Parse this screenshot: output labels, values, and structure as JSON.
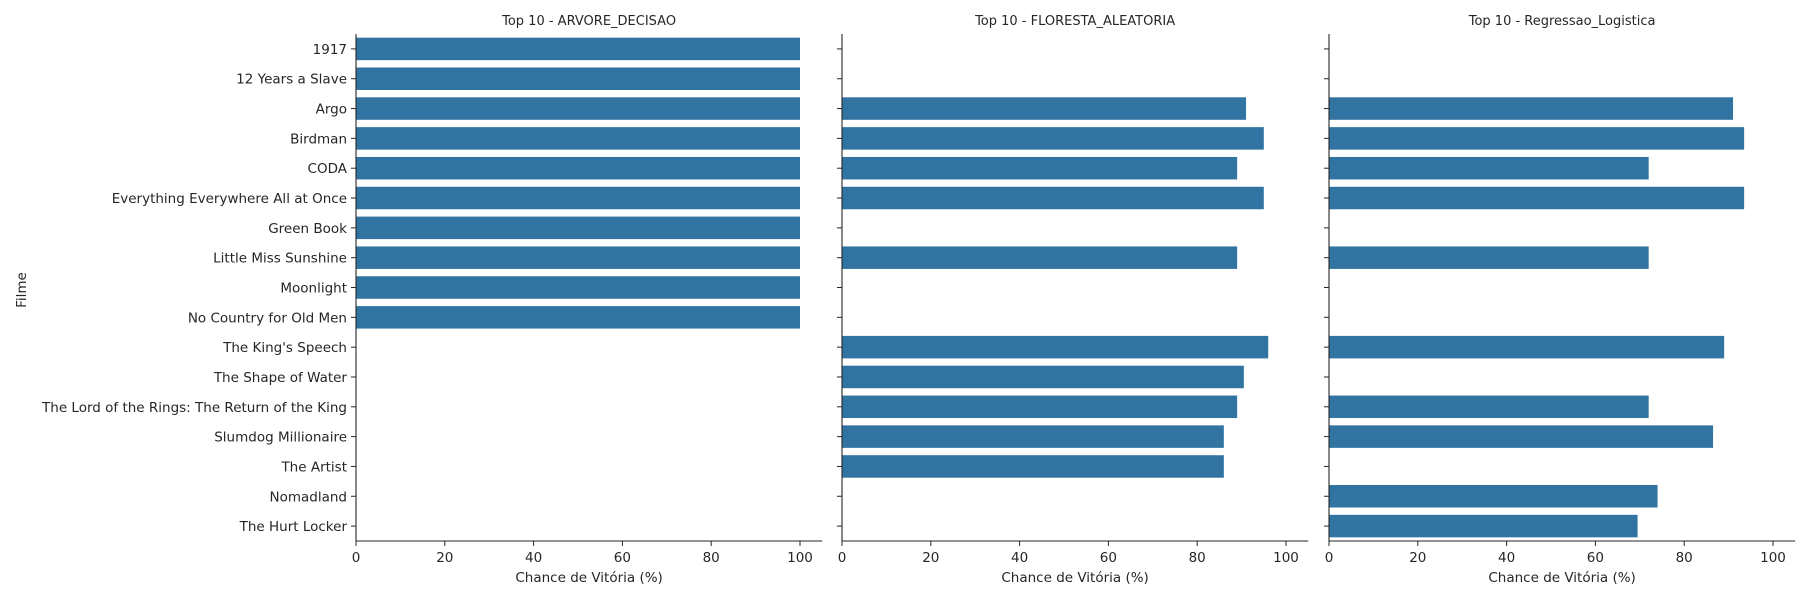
{
  "chart_data": {
    "type": "bar",
    "orientation": "horizontal",
    "bar_color": "#3274a1",
    "grid": false,
    "ylabel": "Filme",
    "categories": [
      "1917",
      "12 Years a Slave",
      "Argo",
      "Birdman",
      "CODA",
      "Everything Everywhere All at Once",
      "Green Book",
      "Little Miss Sunshine",
      "Moonlight",
      "No Country for Old Men",
      "The King's Speech",
      "The Shape of Water",
      "The Lord of the Rings: The Return of the King",
      "Slumdog Millionaire",
      "The Artist",
      "Nomadland",
      "The Hurt Locker"
    ],
    "xlim": [
      0,
      105
    ],
    "xticks": [
      0,
      20,
      40,
      60,
      80,
      100
    ],
    "panels": [
      {
        "title": "Top 10 - ARVORE_DECISAO",
        "xlabel": "Chance de Vitória (%)",
        "values": [
          100,
          100,
          100,
          100,
          100,
          100,
          100,
          100,
          100,
          100,
          null,
          null,
          null,
          null,
          null,
          null,
          null
        ]
      },
      {
        "title": "Top 10 - FLORESTA_ALEATORIA",
        "xlabel": "Chance de Vitória (%)",
        "values": [
          null,
          null,
          91,
          95,
          89,
          95,
          null,
          89,
          null,
          null,
          96,
          90.5,
          89,
          86,
          86,
          null,
          null
        ]
      },
      {
        "title": "Top 10 - Regressao_Logistica",
        "xlabel": "Chance de Vitória (%)",
        "values": [
          null,
          null,
          91,
          93.5,
          72,
          93.5,
          null,
          72,
          null,
          null,
          89,
          null,
          72,
          86.5,
          null,
          74,
          69.5
        ]
      }
    ]
  }
}
